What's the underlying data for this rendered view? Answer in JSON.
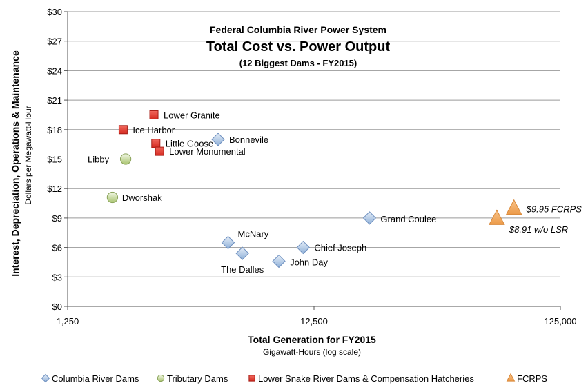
{
  "chart_data": {
    "type": "scatter",
    "title_line1": "Federal Columbia River Power System",
    "title": "Total Cost vs. Power Output",
    "subtitle": "(12 Biggest Dams - FY2015)",
    "xlabel": "Total Generation for FY2015",
    "xlabel_sub": "Gigawatt-Hours (log scale)",
    "ylabel": "Interest, Depreciation, Operations & Maintenance",
    "ylabel_sub": "Dollars per Megawatt-Hour",
    "x_scale": "log",
    "xlim": [
      1250,
      125000
    ],
    "ylim": [
      0,
      30
    ],
    "x_ticks": [
      {
        "value": 1250,
        "label": "1,250"
      },
      {
        "value": 12500,
        "label": "12,500"
      },
      {
        "value": 125000,
        "label": "125,000"
      }
    ],
    "y_ticks": [
      {
        "value": 0,
        "label": "$0"
      },
      {
        "value": 3,
        "label": "$3"
      },
      {
        "value": 6,
        "label": "$6"
      },
      {
        "value": 9,
        "label": "$9"
      },
      {
        "value": 12,
        "label": "$12"
      },
      {
        "value": 15,
        "label": "$15"
      },
      {
        "value": 18,
        "label": "$18"
      },
      {
        "value": 21,
        "label": "$21"
      },
      {
        "value": 24,
        "label": "$24"
      },
      {
        "value": 27,
        "label": "$27"
      },
      {
        "value": 30,
        "label": "$30"
      }
    ],
    "grid": "horizontal",
    "legend_position": "bottom",
    "series": [
      {
        "name": "Columbia River Dams",
        "marker": "diamond",
        "color": "#b8cce4",
        "points": [
          {
            "label": "Bonnevile",
            "x": 5100,
            "y": 17.0
          },
          {
            "label": "Grand Coulee",
            "x": 21000,
            "y": 9.0
          },
          {
            "label": "McNary",
            "x": 5600,
            "y": 6.5
          },
          {
            "label": "The Dalles",
            "x": 6400,
            "y": 5.4
          },
          {
            "label": "Chief Joseph",
            "x": 11300,
            "y": 6.0
          },
          {
            "label": "John Day",
            "x": 9000,
            "y": 4.6
          }
        ]
      },
      {
        "name": "Tributary Dams",
        "marker": "circle",
        "color": "#c4d79b",
        "points": [
          {
            "label": "Libby",
            "x": 2150,
            "y": 15.0
          },
          {
            "label": "Dworshak",
            "x": 1900,
            "y": 11.1
          }
        ]
      },
      {
        "name": "Lower Snake River Dams & Compensation Hatcheries",
        "marker": "square",
        "color": "#e8382f",
        "points": [
          {
            "label": "Lower Granite",
            "x": 2800,
            "y": 19.5
          },
          {
            "label": "Ice Harbor",
            "x": 2100,
            "y": 18.0
          },
          {
            "label": "Little Goose",
            "x": 2850,
            "y": 16.6
          },
          {
            "label": "Lower Monumental",
            "x": 2950,
            "y": 15.8
          }
        ]
      },
      {
        "name": "FCRPS",
        "marker": "triangle",
        "color": "#f4a460",
        "points": [
          {
            "label": "$9.95 FCRPS",
            "x": 81000,
            "y": 9.95
          },
          {
            "label": "$8.91 w/o LSR",
            "x": 69000,
            "y": 8.91
          }
        ]
      }
    ]
  }
}
